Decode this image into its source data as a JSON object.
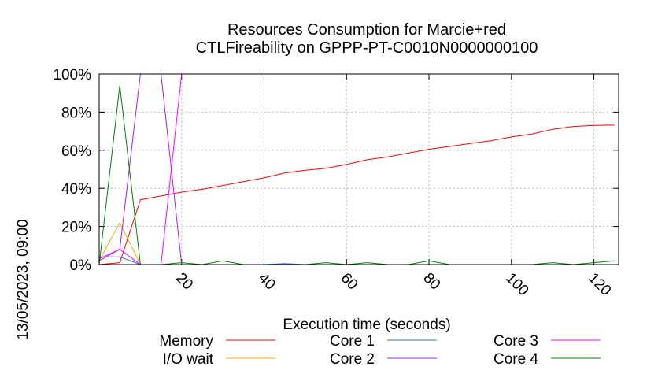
{
  "chart_data": {
    "type": "line",
    "title": "Resources Consumption for Marcie+red",
    "subtitle": "CTLFireability on GPPP-PT-C0010N0000000100",
    "xlabel": "Execution time (seconds)",
    "ylabel": "",
    "side_label": "13/05/2023, 09:00",
    "xlim": [
      0,
      126
    ],
    "ylim": [
      0,
      100
    ],
    "x_ticks": [
      20,
      40,
      60,
      80,
      100,
      120
    ],
    "y_ticks": [
      0,
      20,
      40,
      60,
      80,
      100
    ],
    "y_tick_labels": [
      "0%",
      "20%",
      "40%",
      "60%",
      "80%",
      "100%"
    ],
    "grid": true,
    "legend_position": "bottom",
    "series": [
      {
        "name": "Memory",
        "color": "#ff0000",
        "x": [
          0,
          5,
          10,
          15,
          20,
          25,
          30,
          35,
          40,
          45,
          50,
          55,
          60,
          65,
          70,
          75,
          80,
          85,
          90,
          95,
          100,
          105,
          110,
          115,
          120,
          125
        ],
        "y": [
          0,
          1,
          34,
          36,
          38,
          39.5,
          41.5,
          43.5,
          45.5,
          48,
          49.5,
          50.5,
          52.5,
          55,
          56.5,
          58.5,
          60.5,
          62,
          63.5,
          65,
          67,
          68.5,
          71,
          72.5,
          73,
          73.2
        ]
      },
      {
        "name": "I/O wait",
        "color": "#ffa500",
        "x": [
          0,
          5,
          10
        ],
        "y": [
          2,
          22,
          0
        ]
      },
      {
        "name": "Core 1",
        "color": "#4169e1",
        "x": [
          0,
          5,
          10,
          15,
          20,
          25,
          30,
          35,
          40,
          45,
          50,
          55,
          60,
          65,
          70,
          75,
          80,
          85,
          90,
          95,
          100,
          105,
          110,
          115,
          120,
          125
        ],
        "y": [
          4,
          4,
          0,
          0,
          0,
          0,
          0,
          0,
          0,
          0.5,
          0,
          0,
          0,
          0,
          0,
          0,
          0,
          0,
          0,
          0,
          0,
          0,
          0,
          0,
          0,
          0
        ]
      },
      {
        "name": "Core 2",
        "color": "#a020f0",
        "x": [
          0,
          5,
          10,
          15,
          20,
          25,
          30,
          35,
          40,
          45,
          50,
          55,
          60,
          65,
          70,
          75,
          80,
          85,
          90,
          95,
          100,
          105,
          110,
          115,
          120,
          125
        ],
        "y": [
          2,
          8,
          100,
          100,
          0,
          0,
          0,
          0,
          0,
          0,
          0,
          0,
          0,
          0,
          0,
          0,
          0,
          0,
          0,
          0,
          0,
          0,
          0,
          0,
          0,
          0
        ]
      },
      {
        "name": "Core 3",
        "color": "#ff00ff",
        "x": [
          0,
          5,
          10,
          15,
          20,
          25,
          30,
          35,
          40,
          45,
          50,
          55,
          60,
          65,
          70,
          75,
          80,
          85,
          90,
          95,
          100,
          105,
          110,
          115,
          120,
          125
        ],
        "y": [
          3,
          8,
          0,
          0,
          100,
          100,
          100,
          100,
          100,
          100,
          100,
          100,
          100,
          100,
          100,
          100,
          100,
          100,
          100,
          100,
          100,
          100,
          100,
          100,
          100,
          100
        ]
      },
      {
        "name": "Core 4",
        "color": "#008000",
        "x": [
          0,
          5,
          10,
          15,
          20,
          25,
          30,
          35,
          40,
          45,
          50,
          55,
          60,
          65,
          70,
          75,
          80,
          85,
          90,
          95,
          100,
          105,
          110,
          115,
          120,
          125
        ],
        "y": [
          0,
          94,
          0,
          0,
          1,
          0,
          2,
          0,
          0,
          0,
          0,
          1,
          0,
          1,
          0,
          0,
          2,
          0,
          0,
          0,
          0,
          0,
          1,
          0,
          1,
          2
        ]
      }
    ]
  }
}
